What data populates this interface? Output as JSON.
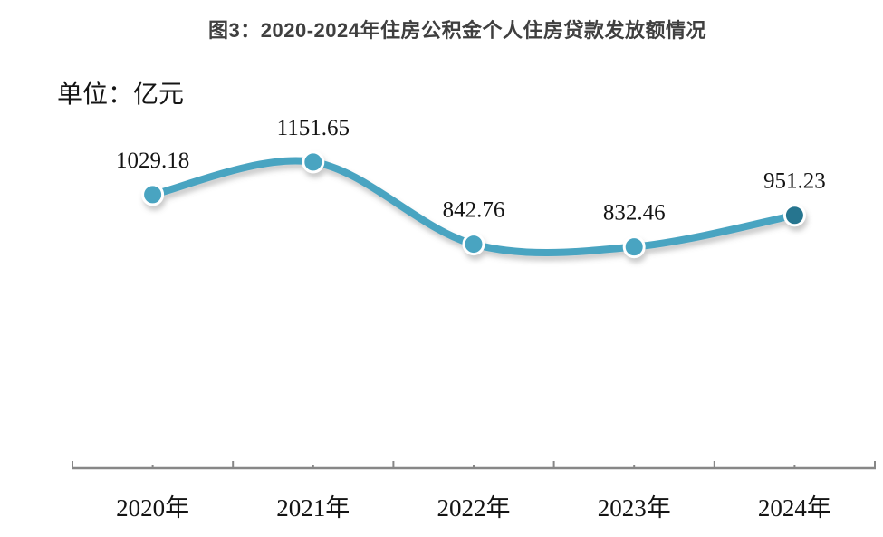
{
  "header": {
    "title": "图3：2020-2024年住房公积金个人住房贷款发放额情况"
  },
  "chart_data": {
    "type": "line",
    "title": "图3：2020-2024年住房公积金个人住房贷款发放额情况",
    "unit_label": "单位：亿元",
    "categories": [
      "2020年",
      "2021年",
      "2022年",
      "2023年",
      "2024年"
    ],
    "values": [
      1029.18,
      1151.65,
      842.76,
      832.46,
      951.23
    ],
    "data_labels": [
      "1029.18",
      "1151.65",
      "842.76",
      "832.46",
      "951.23"
    ],
    "ylim": [
      0,
      1400
    ],
    "grid": false,
    "legend_position": "none",
    "line_smooth": true,
    "colors": {
      "line": "#48A4C1",
      "marker": "#48A4C1",
      "marker_last": "#27758F",
      "marker_ring": "#ffffff",
      "axis": "#878787",
      "label_text": "#141414",
      "title_text": "#3F3F3F"
    }
  }
}
